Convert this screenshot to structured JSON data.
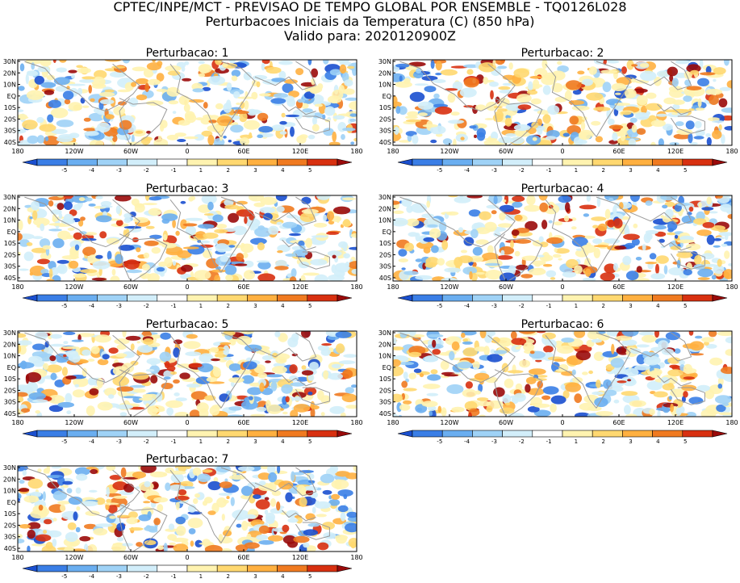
{
  "title_lines": [
    "CPTEC/INPE/MCT - PREVISAO DE TEMPO GLOBAL POR ENSEMBLE - TQ0126L028",
    "Perturbacoes Iniciais da Temperatura (C) (850 hPa)",
    "Valido para: 2020120900Z"
  ],
  "lat_labels": [
    "30N",
    "20N",
    "10N",
    "EQ",
    "10S",
    "20S",
    "30S",
    "40S"
  ],
  "lon_labels": [
    "180",
    "120W",
    "60W",
    "0",
    "60E",
    "120E",
    "180"
  ],
  "colorbar": {
    "labels": [
      "-5",
      "-4",
      "-3",
      "-2",
      "-1",
      "1",
      "2",
      "3",
      "4",
      "5"
    ],
    "colors": [
      "#1a4fcf",
      "#3a7ee6",
      "#6aaef0",
      "#9fd2f6",
      "#d2eefa",
      "#ffffff",
      "#fff3b0",
      "#ffd870",
      "#ffb040",
      "#f07a20",
      "#d83010",
      "#9a0a0a"
    ]
  },
  "panels": [
    {
      "title": "Perturbacao: 1"
    },
    {
      "title": "Perturbacao: 2"
    },
    {
      "title": "Perturbacao: 3"
    },
    {
      "title": "Perturbacao: 4"
    },
    {
      "title": "Perturbacao: 5"
    },
    {
      "title": "Perturbacao: 6"
    },
    {
      "title": "Perturbacao: 7"
    }
  ]
}
